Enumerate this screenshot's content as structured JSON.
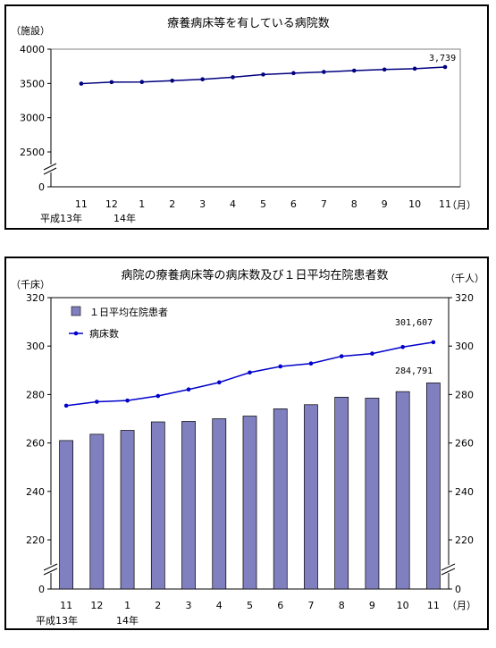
{
  "chart_data": [
    {
      "type": "line",
      "title": "療養病床等を有している病院数",
      "ylabel": "（施設）",
      "xunit": "（月）",
      "categories": [
        "11",
        "12",
        "1",
        "2",
        "3",
        "4",
        "5",
        "6",
        "7",
        "8",
        "9",
        "10",
        "11"
      ],
      "era_labels": [
        "平成13年",
        "14年"
      ],
      "yticks": [
        0,
        2500,
        3000,
        3500,
        4000
      ],
      "ylim": [
        2500,
        4000
      ],
      "axis_break": true,
      "series": [
        {
          "values": [
            3497,
            3519,
            3521,
            3540,
            3560,
            3590,
            3630,
            3650,
            3668,
            3687,
            3703,
            3715,
            3739
          ]
        }
      ],
      "value_label": "3,739",
      "color": "#000080"
    },
    {
      "type": "bar+line",
      "title": "病院の療養病床等の病床数及び１日平均在院患者数",
      "ylabel_left": "（千床）",
      "ylabel_right": "（千人）",
      "xunit": "（月）",
      "categories": [
        "11",
        "12",
        "1",
        "2",
        "3",
        "4",
        "5",
        "6",
        "7",
        "8",
        "9",
        "10",
        "11"
      ],
      "era_labels": [
        "平成13年",
        "14年"
      ],
      "yticks": [
        0,
        220,
        240,
        260,
        280,
        300,
        320
      ],
      "ylim": [
        200,
        320
      ],
      "axis_break": true,
      "series": [
        {
          "name": "１日平均在院患者",
          "kind": "bar",
          "values": [
            261.0,
            263.6,
            265.2,
            268.7,
            268.9,
            270.0,
            271.1,
            274.1,
            275.8,
            278.9,
            278.5,
            281.2,
            284.8
          ]
        },
        {
          "name": "病床数",
          "kind": "line",
          "values": [
            275.4,
            277.0,
            277.5,
            279.4,
            282.1,
            285.0,
            289.1,
            291.6,
            292.8,
            295.8,
            296.9,
            299.6,
            301.6
          ]
        }
      ],
      "bar_label": "284,791",
      "line_label": "301,607",
      "bar_color": "#8080c0",
      "line_color": "#0000cc"
    }
  ]
}
